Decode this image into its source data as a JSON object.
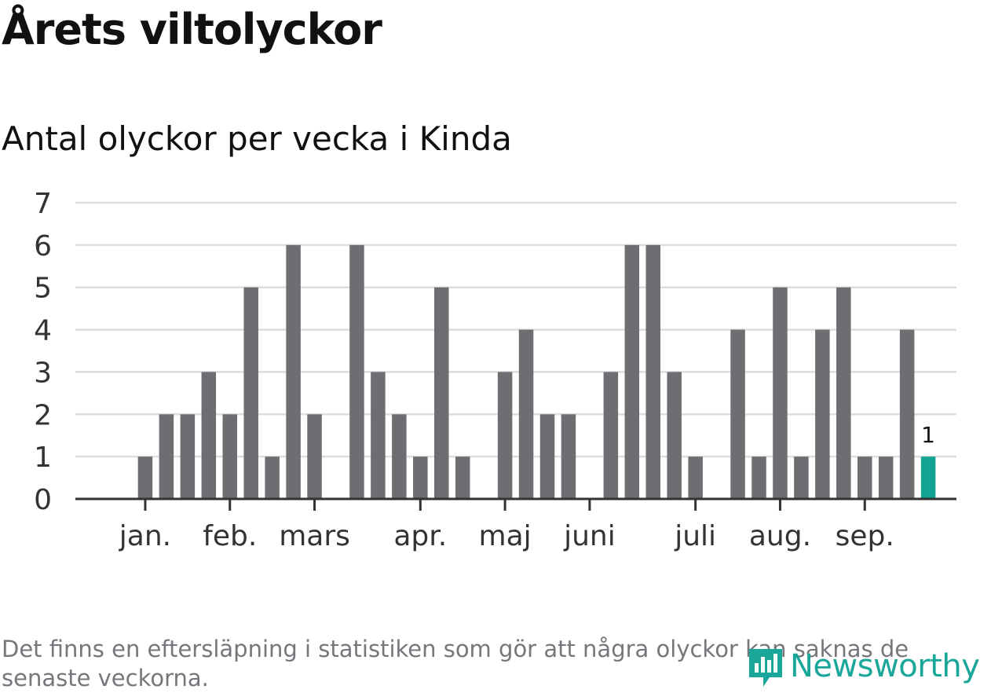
{
  "header": {
    "title": "Årets viltolyckor",
    "subtitle": "Antal olyckor per vecka i Kinda"
  },
  "footer": {
    "note": "Det finns en eftersläpning i statistiken som gör att några olyckor kan saknas de senaste veckorna.",
    "brand": "Newsworthy"
  },
  "colors": {
    "bar": "#6e6d72",
    "highlight": "#12a393",
    "grid": "#dddddd",
    "axis": "#333333",
    "tick_text": "#333333",
    "brand": "#1aa79a",
    "footnote": "#77767c"
  },
  "icons": {
    "logo": "newsworthy-logo-icon"
  },
  "chart_data": {
    "type": "bar",
    "title": "Årets viltolyckor",
    "subtitle": "Antal olyckor per vecka i Kinda",
    "xlabel": "",
    "ylabel": "",
    "ylim": [
      0,
      7
    ],
    "yticks": [
      0,
      1,
      2,
      3,
      4,
      5,
      6,
      7
    ],
    "grid": true,
    "x": [
      1,
      2,
      3,
      4,
      5,
      6,
      7,
      8,
      9,
      10,
      11,
      12,
      13,
      14,
      15,
      16,
      17,
      18,
      19,
      20,
      21,
      22,
      23,
      24,
      25,
      26,
      27,
      28,
      29,
      30,
      31,
      32,
      33,
      34,
      35,
      36,
      37,
      38,
      39,
      40,
      41,
      42
    ],
    "values": [
      0,
      1,
      2,
      2,
      3,
      2,
      5,
      1,
      6,
      2,
      0,
      6,
      3,
      2,
      1,
      5,
      1,
      0,
      3,
      4,
      2,
      2,
      0,
      3,
      6,
      6,
      3,
      1,
      0,
      4,
      1,
      5,
      1,
      4,
      5,
      1,
      1,
      4,
      1,
      0,
      0,
      0
    ],
    "highlight_index": 38,
    "highlight_label": "1",
    "month_ticks": [
      {
        "label": "jan.",
        "x": 2
      },
      {
        "label": "feb.",
        "x": 6
      },
      {
        "label": "mars",
        "x": 10
      },
      {
        "label": "apr.",
        "x": 15
      },
      {
        "label": "maj",
        "x": 19
      },
      {
        "label": "juni",
        "x": 23
      },
      {
        "label": "juli",
        "x": 28
      },
      {
        "label": "aug.",
        "x": 32
      },
      {
        "label": "sep.",
        "x": 36
      }
    ]
  }
}
